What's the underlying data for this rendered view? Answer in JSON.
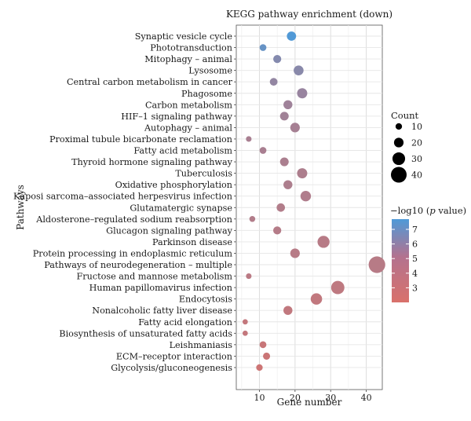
{
  "chart_data": {
    "type": "scatter",
    "title": "KEGG pathway enrichment (down)",
    "xlabel": "Gene number",
    "ylabel": "Pathways",
    "xlim": [
      3.5,
      44.5
    ],
    "xticks": [
      10,
      20,
      30,
      40
    ],
    "grid": true,
    "color_scale": {
      "low": "#d9716b",
      "high": "#4f9ad8",
      "min": 2,
      "max": 7.7
    },
    "legend_size": {
      "title": "Count",
      "values": [
        10,
        20,
        30,
        40
      ]
    },
    "legend_color": {
      "title_prefix": "−log10 (",
      "title_italic": "p",
      "title_suffix": " value)",
      "ticks": [
        7,
        6,
        5,
        4,
        3
      ]
    },
    "points": [
      {
        "pathway": "Synaptic vesicle cycle",
        "x": 19,
        "logp": 7.6
      },
      {
        "pathway": "Phototransduction",
        "x": 11,
        "logp": 6.7
      },
      {
        "pathway": "Mitophagy – animal",
        "x": 15,
        "logp": 5.5
      },
      {
        "pathway": "Lysosome",
        "x": 21,
        "logp": 5.3
      },
      {
        "pathway": "Central carbon metabolism in cancer",
        "x": 14,
        "logp": 4.9
      },
      {
        "pathway": "Phagosome",
        "x": 22,
        "logp": 4.7
      },
      {
        "pathway": "Carbon metabolism",
        "x": 18,
        "logp": 4.4
      },
      {
        "pathway": "HIF–1 signaling pathway",
        "x": 17,
        "logp": 4.3
      },
      {
        "pathway": "Autophagy – animal",
        "x": 20,
        "logp": 4.1
      },
      {
        "pathway": "Proximal tubule bicarbonate reclamation",
        "x": 7,
        "logp": 4.0
      },
      {
        "pathway": "Fatty acid metabolism",
        "x": 11,
        "logp": 4.0
      },
      {
        "pathway": "Thyroid hormone signaling pathway",
        "x": 17,
        "logp": 3.9
      },
      {
        "pathway": "Tuberculosis",
        "x": 22,
        "logp": 3.8
      },
      {
        "pathway": "Oxidative phosphorylation",
        "x": 18,
        "logp": 3.8
      },
      {
        "pathway": "Kaposi sarcoma–associated herpesvirus infection",
        "x": 23,
        "logp": 3.7
      },
      {
        "pathway": "Glutamatergic synapse",
        "x": 16,
        "logp": 3.6
      },
      {
        "pathway": "Aldosterone–regulated sodium reabsorption",
        "x": 8,
        "logp": 3.6
      },
      {
        "pathway": "Glucagon signaling pathway",
        "x": 15,
        "logp": 3.5
      },
      {
        "pathway": "Parkinson disease",
        "x": 28,
        "logp": 3.4
      },
      {
        "pathway": "Protein processing in endoplasmic reticulum",
        "x": 20,
        "logp": 3.4
      },
      {
        "pathway": "Pathways of neurodegeneration – multiple",
        "x": 43,
        "logp": 3.4
      },
      {
        "pathway": "Fructose and mannose metabolism",
        "x": 7,
        "logp": 3.3
      },
      {
        "pathway": "Human papillomavirus infection",
        "x": 32,
        "logp": 3.1
      },
      {
        "pathway": "Endocytosis",
        "x": 26,
        "logp": 3.0
      },
      {
        "pathway": "Nonalcoholic fatty liver disease",
        "x": 18,
        "logp": 3.0
      },
      {
        "pathway": "Fatty acid elongation",
        "x": 6,
        "logp": 2.9
      },
      {
        "pathway": "Biosynthesis of unsaturated fatty acids",
        "x": 6,
        "logp": 2.9
      },
      {
        "pathway": "Leishmaniasis",
        "x": 11,
        "logp": 2.7
      },
      {
        "pathway": "ECM–receptor interaction",
        "x": 12,
        "logp": 2.6
      },
      {
        "pathway": "Glycolysis/gluconeogenesis",
        "x": 10,
        "logp": 2.5
      }
    ]
  }
}
